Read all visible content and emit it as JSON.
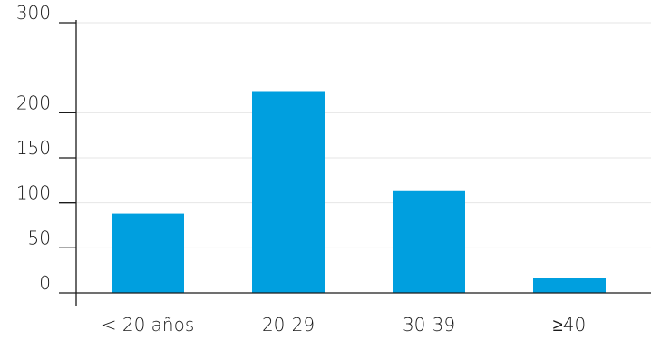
{
  "chart_data": {
    "type": "bar",
    "title": "",
    "xlabel": "",
    "ylabel": "",
    "categories": [
      "< 20 años",
      "20-29",
      "30-39",
      "≥40"
    ],
    "values": [
      88,
      224,
      113,
      17
    ],
    "ylim": [
      0,
      300
    ],
    "yticks": [
      {
        "value": 0,
        "label": "0"
      },
      {
        "value": 50,
        "label": "50"
      },
      {
        "value": 100,
        "label": "100"
      },
      {
        "value": 150,
        "label": "150"
      },
      {
        "value": 200,
        "label": "200"
      },
      {
        "value": 300,
        "label": "300"
      }
    ],
    "grid": true,
    "legend": "none",
    "bar_color": "#009FDF",
    "grid_color": "#E6E6E6",
    "axis_color": "#1A1A1A",
    "text_color": "#1A1A1A"
  }
}
